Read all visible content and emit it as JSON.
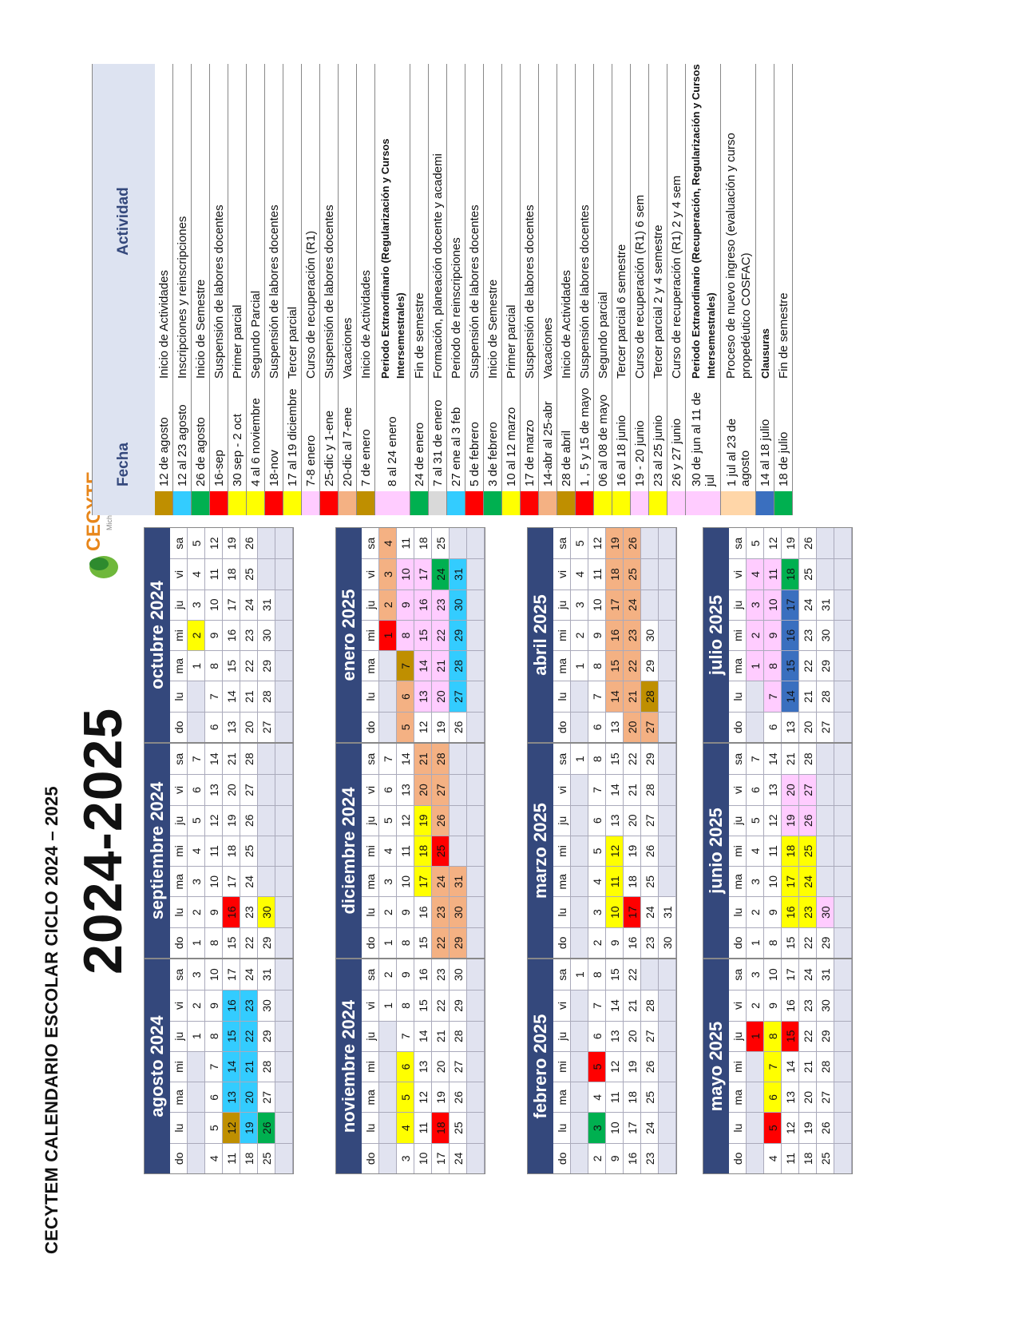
{
  "document": {
    "title": "CECYTEM CALENDARIO ESCOLAR CICLO 2024 – 2025",
    "big_title": "2024-2025",
    "logo": {
      "name": "CECYTE",
      "sub": "Michoacán"
    },
    "weekday_headers": [
      "do",
      "lu",
      "ma",
      "mi",
      "ju",
      "vi",
      "sa"
    ]
  },
  "colors": {
    "gold": "#bf8f00",
    "cyan": "#33ccff",
    "green": "#00b050",
    "red": "#ff0000",
    "yellow": "#ffff00",
    "pink": "#ffccff",
    "salmon": "#f4b183",
    "gray": "#d9d9d9",
    "blue": "#3a6fbf",
    "peach": "#ffd6a8",
    "navy": "#34487c",
    "empty": "#e1e3f0"
  },
  "months": [
    {
      "name": "agosto 2024",
      "start": 4,
      "days": 31,
      "marks": {
        "12": "gold",
        "13": "cyan",
        "14": "cyan",
        "15": "cyan",
        "16": "cyan",
        "19": "cyan",
        "20": "cyan",
        "21": "cyan",
        "22": "cyan",
        "23": "cyan",
        "26": "green"
      }
    },
    {
      "name": "septiembre 2024",
      "start": 0,
      "days": 30,
      "marks": {
        "16": "red",
        "30": "yellow"
      }
    },
    {
      "name": "octubre 2024",
      "start": 2,
      "days": 31,
      "marks": {
        "2": "yellow"
      }
    },
    {
      "name": "noviembre 2024",
      "start": 5,
      "days": 30,
      "marks": {
        "4": "yellow",
        "5": "yellow",
        "6": "yellow",
        "18": "red"
      }
    },
    {
      "name": "diciembre 2024",
      "start": 0,
      "days": 31,
      "marks": {
        "17": "yellow",
        "18": "yellow",
        "19": "yellow",
        "20": "salmon",
        "21": "salmon",
        "22": "salmon",
        "23": "salmon",
        "24": "salmon",
        "25": "red",
        "26": "salmon",
        "27": "salmon",
        "28": "salmon",
        "29": "salmon",
        "30": "salmon",
        "31": "salmon"
      }
    },
    {
      "name": "enero 2025",
      "start": 3,
      "days": 31,
      "marks": {
        "1": "red",
        "2": "salmon",
        "3": "salmon",
        "4": "salmon",
        "5": "salmon",
        "6": "salmon",
        "7": "gold",
        "8": "pink",
        "9": "pink",
        "10": "pink",
        "13": "pink",
        "14": "pink",
        "15": "pink",
        "16": "pink",
        "17": "pink",
        "20": "pink",
        "21": "pink",
        "22": "pink",
        "23": "pink",
        "24": "green",
        "27": "cyan",
        "28": "cyan",
        "29": "cyan",
        "30": "cyan",
        "31": "cyan"
      }
    },
    {
      "name": "febrero 2025",
      "start": 6,
      "days": 28,
      "marks": {
        "3": "green",
        "5": "red"
      }
    },
    {
      "name": "marzo 2025",
      "start": 6,
      "days": 31,
      "marks": {
        "10": "yellow",
        "11": "yellow",
        "12": "yellow",
        "17": "red"
      }
    },
    {
      "name": "abril 2025",
      "start": 2,
      "days": 30,
      "marks": {
        "14": "salmon",
        "15": "salmon",
        "16": "salmon",
        "17": "salmon",
        "18": "salmon",
        "19": "salmon",
        "20": "salmon",
        "21": "salmon",
        "22": "salmon",
        "23": "salmon",
        "24": "salmon",
        "25": "salmon",
        "26": "salmon",
        "27": "salmon",
        "28": "gold"
      }
    },
    {
      "name": "mayo 2025",
      "start": 4,
      "days": 31,
      "marks": {
        "1": "red",
        "5": "red",
        "6": "yellow",
        "7": "yellow",
        "8": "yellow",
        "15": "red"
      }
    },
    {
      "name": "junio 2025",
      "start": 0,
      "days": 30,
      "marks": {
        "16": "yellow",
        "17": "yellow",
        "18": "yellow",
        "19": "pink",
        "20": "pink",
        "23": "yellow",
        "24": "yellow",
        "25": "yellow",
        "26": "pink",
        "27": "pink",
        "30": "pink"
      }
    },
    {
      "name": "julio 2025",
      "start": 2,
      "days": 31,
      "marks": {
        "1": "pink",
        "2": "pink",
        "3": "pink",
        "4": "pink",
        "7": "pink",
        "8": "pink",
        "9": "pink",
        "10": "pink",
        "11": "pink",
        "14": "blue",
        "15": "blue",
        "16": "blue",
        "17": "blue",
        "18": "green"
      }
    }
  ],
  "legend": {
    "header_fecha": "Fecha",
    "header_actividad": "Actividad",
    "rows": [
      {
        "color": "gold",
        "fecha": "12 de agosto",
        "actividad": "Inicio de Actividades"
      },
      {
        "color": "cyan",
        "fecha": "12 al 23 agosto",
        "actividad": "Inscripciones y reinscripciones"
      },
      {
        "color": "green",
        "fecha": "26 de agosto",
        "actividad": "Inicio de Semestre"
      },
      {
        "color": "red",
        "fecha": "16-sep",
        "actividad": "Suspensión de labores docentes"
      },
      {
        "color": "yellow",
        "fecha": "30 sep - 2 oct",
        "actividad": "Primer parcial"
      },
      {
        "color": "yellow",
        "fecha": "4 al 6 noviembre",
        "actividad": "Segundo Parcial"
      },
      {
        "color": "red",
        "fecha": "18-nov",
        "actividad": "Suspensión de labores docentes"
      },
      {
        "color": "yellow",
        "fecha": "17 al 19 diciembre",
        "actividad": "Tercer parcial"
      },
      {
        "color": "pink",
        "fecha": "7-8 enero",
        "actividad": "Curso de recuperación (R1)"
      },
      {
        "color": "red",
        "fecha": "25-dic y 1-ene",
        "actividad": "Suspensión de labores docentes"
      },
      {
        "color": "salmon",
        "fecha": "20-dic al 7-ene",
        "actividad": "Vacaciones"
      },
      {
        "color": "gold",
        "fecha": "7 de enero",
        "actividad": "Inicio de Actividades"
      },
      {
        "color": "pink",
        "fecha": "8 al 24 enero",
        "actividad": "Periodo Extraordinario (Regularización y Cursos Intersemestrales)",
        "bold": true,
        "tall": true
      },
      {
        "color": "green",
        "fecha": "24 de enero",
        "actividad": "Fin de semestre"
      },
      {
        "color": "gray",
        "fecha": "7 al 31 de enero",
        "actividad": "Formación, planeación docente y academi"
      },
      {
        "color": "cyan",
        "fecha": "27 ene al 3 feb",
        "actividad": "Periodo de reinscripciones"
      },
      {
        "color": "red",
        "fecha": "5 de febrero",
        "actividad": "Suspensión de labores docentes"
      },
      {
        "color": "green",
        "fecha": "3 de febrero",
        "actividad": "Inicio de Semestre"
      },
      {
        "color": "yellow",
        "fecha": "10 al 12 marzo",
        "actividad": "Primer parcial"
      },
      {
        "color": "red",
        "fecha": "17 de marzo",
        "actividad": "Suspensión de labores docentes"
      },
      {
        "color": "salmon",
        "fecha": "14-abr al 25-abr",
        "actividad": "Vacaciones"
      },
      {
        "color": "gold",
        "fecha": "28 de abril",
        "actividad": "Inicio de Actividades"
      },
      {
        "color": "red",
        "fecha": "1 , 5 y 15 de mayo",
        "actividad": "Suspensión de labores docentes"
      },
      {
        "color": "yellow",
        "fecha": "06 al 08 de mayo",
        "actividad": "Segundo parcial"
      },
      {
        "color": "yellow",
        "fecha": "16 al 18 junio",
        "actividad": "Tercer parcial 6 semestre"
      },
      {
        "color": "pink",
        "fecha": "19 - 20 junio",
        "actividad": "Curso de recuperación (R1) 6 sem"
      },
      {
        "color": "yellow",
        "fecha": "23 al 25 junio",
        "actividad": "Tercer parcial 2 y 4 semestre"
      },
      {
        "color": "pink",
        "fecha": "26 y 27  junio",
        "actividad": "Curso de recuperación (R1)  2 y 4 sem"
      },
      {
        "color": "pink",
        "fecha": "30 de jun al 11 de jul",
        "actividad": "Periodo Extraordinario (Recuperación, Regularización y Cursos Intersemestrales)",
        "bold": true,
        "tall": true
      },
      {
        "color": "peach",
        "fecha": "1 jul  al 23 de agosto",
        "actividad": "Proceso de nuevo ingreso (evaluación y curso propedéutico COSFAC)",
        "tall": true
      },
      {
        "color": "blue",
        "fecha": "14 al 18 julio",
        "actividad": "Clausuras",
        "bold": true
      },
      {
        "color": "green",
        "fecha": "18 de julio",
        "actividad": "Fin de semestre"
      }
    ]
  }
}
